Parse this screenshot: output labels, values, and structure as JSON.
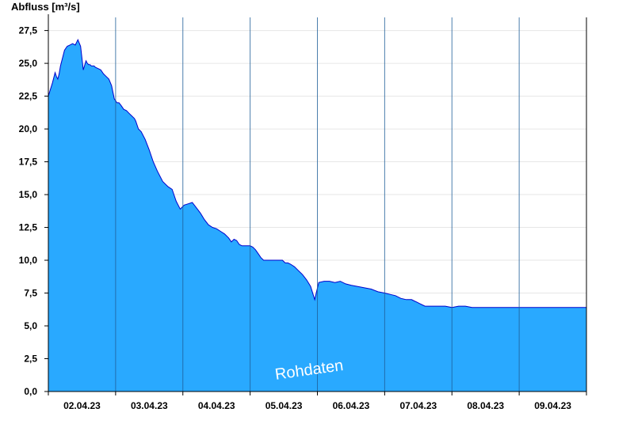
{
  "chart_data": {
    "type": "area",
    "ylabel": "Abfluss [m³/s]",
    "watermark": "Rohdaten",
    "ylim": [
      0,
      28.5
    ],
    "yticks": [
      "0,0",
      "2,5",
      "5,0",
      "7,5",
      "10,0",
      "12,5",
      "15,0",
      "17,5",
      "20,0",
      "22,5",
      "25,0",
      "27,5"
    ],
    "x_range_days": [
      0,
      8
    ],
    "day_labels": [
      "02.04.23",
      "03.04.23",
      "04.04.23",
      "05.04.23",
      "06.04.23",
      "07.04.23",
      "08.04.23",
      "09.04.23"
    ],
    "grid": true,
    "colors": {
      "fill": "#29A9FF",
      "line": "#0000CC",
      "grid": "#E6E6E6",
      "axis": "#000000"
    },
    "series": [
      {
        "x": [
          0.0,
          0.03,
          0.06,
          0.1,
          0.12,
          0.14,
          0.16,
          0.18,
          0.2,
          0.24,
          0.28,
          0.32,
          0.36,
          0.4,
          0.44,
          0.48,
          0.52,
          0.56,
          0.58,
          0.6,
          0.62,
          0.64,
          0.66,
          0.68,
          0.7,
          0.74,
          0.78,
          0.82,
          0.86,
          0.9,
          0.94,
          0.98,
          1.02,
          1.05,
          1.08,
          1.12,
          1.16,
          1.2,
          1.24,
          1.28,
          1.3,
          1.34,
          1.38,
          1.44,
          1.5,
          1.56,
          1.62,
          1.7,
          1.78,
          1.84,
          1.9,
          1.96,
          2.02,
          2.08,
          2.14,
          2.2,
          2.26,
          2.32,
          2.38,
          2.44,
          2.5,
          2.56,
          2.62,
          2.68,
          2.72,
          2.76,
          2.8,
          2.84,
          2.88,
          2.92,
          2.96,
          3.0,
          3.04,
          3.08,
          3.12,
          3.16,
          3.2,
          3.24,
          3.28,
          3.32,
          3.36,
          3.4,
          3.44,
          3.48,
          3.52,
          3.56,
          3.6,
          3.66,
          3.72,
          3.78,
          3.84,
          3.9,
          3.96,
          4.02,
          4.1,
          4.18,
          4.26,
          4.34,
          4.42,
          4.5,
          4.6,
          4.7,
          4.8,
          4.9,
          5.0,
          5.08,
          5.16,
          5.24,
          5.32,
          5.4,
          5.44,
          5.48,
          5.52,
          5.56,
          5.6,
          5.66,
          5.72,
          5.78,
          5.84,
          5.9,
          6.0,
          6.1,
          6.2,
          6.3,
          6.4,
          6.5,
          6.6,
          6.7,
          6.8,
          6.9,
          7.0,
          7.1,
          7.2,
          7.3,
          7.4,
          7.5,
          7.6,
          7.7,
          7.8,
          7.9,
          8.0
        ],
        "values": [
          22.5,
          23.0,
          23.5,
          24.3,
          24.0,
          23.8,
          24.2,
          24.8,
          25.2,
          26.0,
          26.3,
          26.4,
          26.5,
          26.4,
          26.8,
          26.3,
          24.5,
          25.2,
          25.0,
          24.9,
          24.9,
          24.8,
          24.8,
          24.8,
          24.7,
          24.6,
          24.5,
          24.2,
          24.0,
          23.8,
          23.3,
          22.3,
          22.0,
          22.0,
          21.8,
          21.5,
          21.4,
          21.2,
          21.0,
          20.8,
          20.6,
          20.0,
          19.8,
          19.2,
          18.4,
          17.5,
          16.8,
          16.0,
          15.6,
          15.4,
          14.5,
          13.9,
          14.2,
          14.3,
          14.4,
          14.0,
          13.6,
          13.1,
          12.7,
          12.5,
          12.4,
          12.2,
          12.0,
          11.7,
          11.4,
          11.6,
          11.5,
          11.2,
          11.1,
          11.1,
          11.1,
          11.1,
          11.0,
          10.8,
          10.5,
          10.2,
          10.0,
          10.0,
          10.0,
          10.0,
          10.0,
          10.0,
          10.0,
          10.0,
          9.8,
          9.8,
          9.7,
          9.5,
          9.2,
          8.9,
          8.5,
          8.0,
          7.0,
          8.3,
          8.4,
          8.4,
          8.3,
          8.4,
          8.2,
          8.1,
          8.0,
          7.9,
          7.8,
          7.6,
          7.5,
          7.4,
          7.3,
          7.1,
          7.0,
          7.0,
          6.9,
          6.8,
          6.7,
          6.6,
          6.5,
          6.5,
          6.5,
          6.5,
          6.5,
          6.5,
          6.4,
          6.5,
          6.5,
          6.4,
          6.4,
          6.4,
          6.4,
          6.4,
          6.4,
          6.4,
          6.4,
          6.4,
          6.4,
          6.4,
          6.4,
          6.4,
          6.4,
          6.4,
          6.4,
          6.4,
          6.4
        ]
      }
    ]
  }
}
